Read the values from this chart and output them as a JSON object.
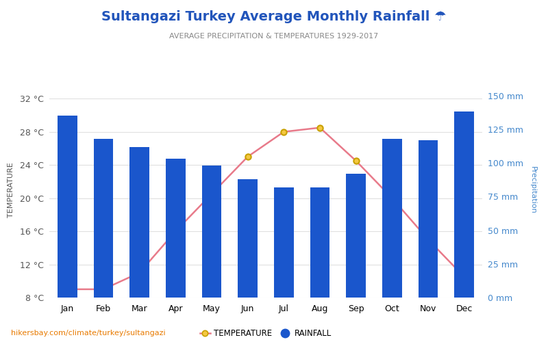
{
  "title": "Sultangazi Turkey Average Monthly Rainfall ☂",
  "subtitle": "AVERAGE PRECIPITATION & TEMPERATURES 1929-2017",
  "months": [
    "Jan",
    "Feb",
    "Mar",
    "Apr",
    "May",
    "Jun",
    "Jul",
    "Aug",
    "Sep",
    "Oct",
    "Nov",
    "Dec"
  ],
  "rainfall_mm": [
    135,
    118,
    112,
    103,
    98,
    88,
    82,
    82,
    92,
    118,
    117,
    138
  ],
  "temperature_c": [
    9.0,
    9.0,
    11.0,
    16.0,
    20.5,
    25.0,
    28.0,
    28.5,
    24.5,
    20.0,
    15.0,
    10.5
  ],
  "bar_color": "#1a56cc",
  "line_color": "#e87a8a",
  "marker_facecolor": "#f5c842",
  "marker_edgecolor": "#c8a000",
  "temp_ylim": [
    8,
    34
  ],
  "temp_yticks": [
    8,
    12,
    16,
    20,
    24,
    28,
    32
  ],
  "temp_ytick_labels": [
    "8 °C",
    "12 °C",
    "16 °C",
    "20 °C",
    "24 °C",
    "28 °C",
    "32 °C"
  ],
  "rain_ylim": [
    0,
    160
  ],
  "rain_yticks": [
    0,
    25,
    50,
    75,
    100,
    125,
    150
  ],
  "rain_ytick_labels": [
    "0 mm",
    "25 mm",
    "50 mm",
    "75 mm",
    "100 mm",
    "125 mm",
    "150 mm"
  ],
  "ylabel_left": "TEMPERATURE",
  "ylabel_right": "Precipitation",
  "title_color": "#2255bb",
  "subtitle_color": "#888888",
  "axis_color": "#4488cc",
  "tick_color": "#555555",
  "footer_text": "hikersbay.com/climate/turkey/sultangazi",
  "footer_color": "#e87a00",
  "background_color": "#ffffff",
  "grid_color": "#e0e0e0"
}
